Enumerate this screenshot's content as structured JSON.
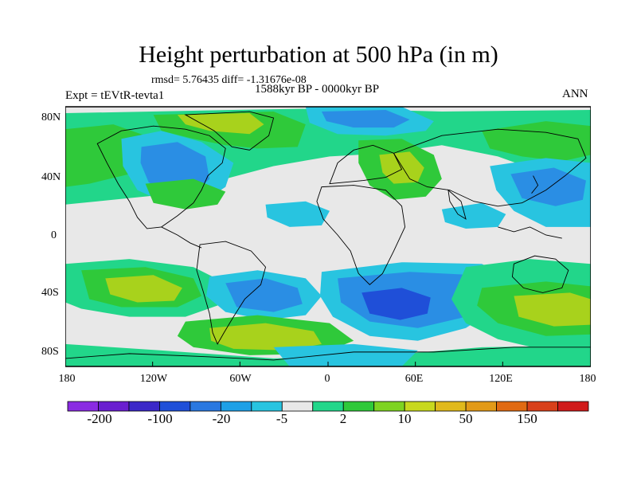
{
  "title": "Height perturbation at 500 hPa (in m)",
  "stats": "rmsd= 5.76435 diff= -1.31676e-08",
  "period": "1588kyr BP - 0000kyr BP",
  "experiment": "Expt = tEVtR-tevta1",
  "season": "ANN",
  "lat_ticks": [
    "80N",
    "40N",
    "0",
    "40S",
    "80S"
  ],
  "lon_ticks": [
    "180",
    "120W",
    "60W",
    "0",
    "60E",
    "120E",
    "180"
  ],
  "colorbar": {
    "colors": [
      "#8a2be2",
      "#6a1fd0",
      "#3b28c8",
      "#1f4fd8",
      "#2a78e0",
      "#1ea0e6",
      "#28c4e0",
      "#e8e8e8",
      "#22d68a",
      "#2fc93a",
      "#7ed321",
      "#c8d81e",
      "#e0b91c",
      "#e29a18",
      "#e06a12",
      "#d8401a",
      "#d01a1a"
    ],
    "labels": [
      "-200",
      "-100",
      "-20",
      "-5",
      "2",
      "10",
      "50",
      "150"
    ]
  },
  "palette": {
    "neutral": "#e8e8e8",
    "light_green": "#22d68a",
    "green": "#2fc93a",
    "yellow_green": "#a8d21c",
    "cyan": "#28c4e0",
    "blue": "#2a8ee4",
    "dark_blue": "#1f4fd8"
  }
}
